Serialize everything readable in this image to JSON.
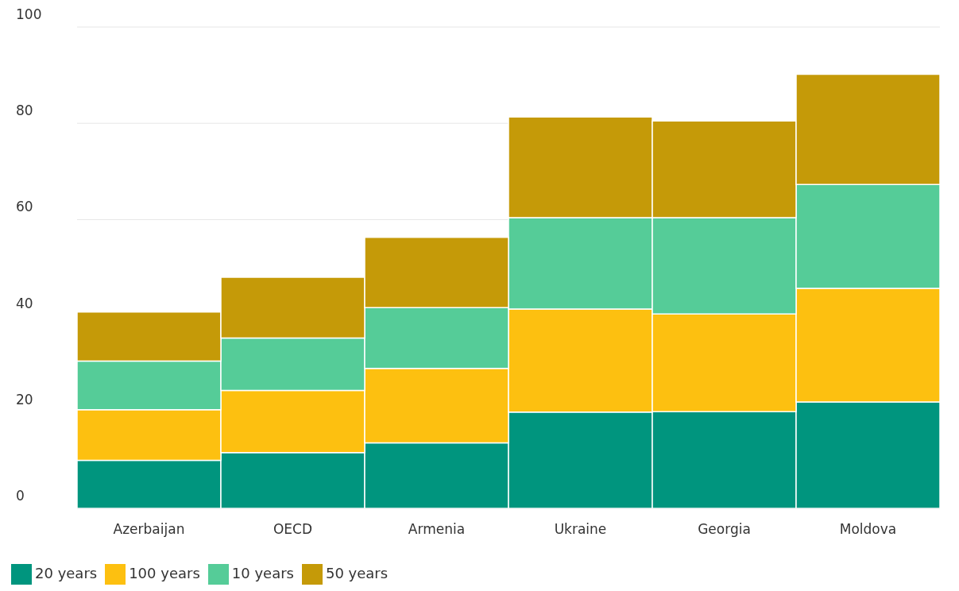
{
  "chart_data": {
    "type": "bar",
    "stacked": true,
    "categories": [
      "Azerbaijan",
      "OECD",
      "Armenia",
      "Ukraine",
      "Georgia",
      "Moldova"
    ],
    "series": [
      {
        "name": "20 years",
        "color": "#00957e",
        "values": [
          10.0,
          11.6,
          13.6,
          20.0,
          20.1,
          22.1
        ]
      },
      {
        "name": "100 years",
        "color": "#fdc010",
        "values": [
          10.5,
          12.9,
          15.5,
          21.4,
          20.3,
          23.6
        ]
      },
      {
        "name": "10 years",
        "color": "#55cc98",
        "values": [
          10.1,
          10.9,
          12.6,
          19.0,
          20.0,
          21.6
        ]
      },
      {
        "name": "50 years",
        "color": "#c59a08",
        "values": [
          10.2,
          12.6,
          14.6,
          20.9,
          20.1,
          22.9
        ]
      }
    ],
    "ylim": [
      0,
      100
    ],
    "yticks": [
      0,
      20,
      40,
      60,
      80,
      100
    ],
    "grid": "y",
    "legend": "bottom left"
  }
}
